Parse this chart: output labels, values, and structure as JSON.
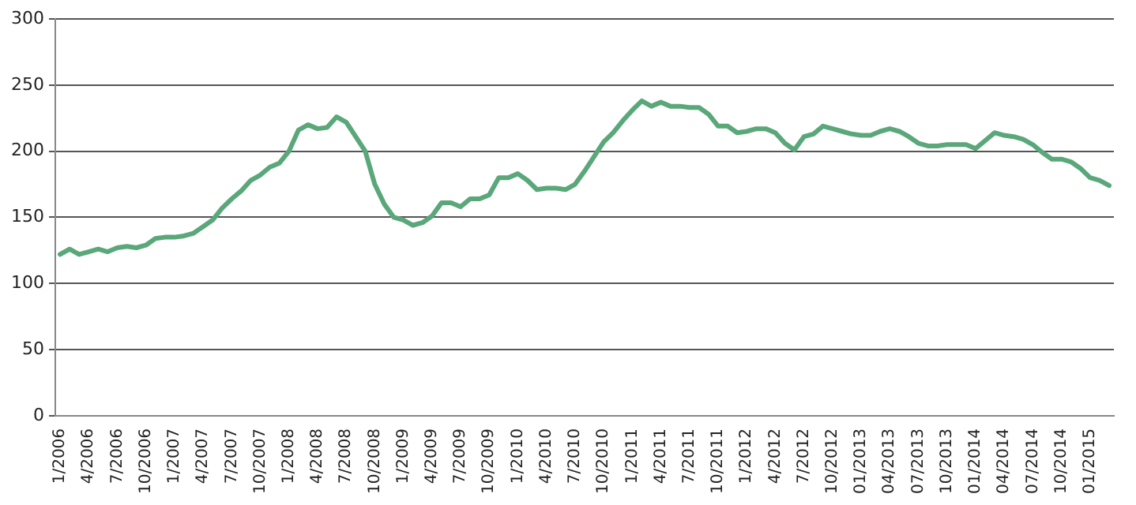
{
  "chart_data": {
    "type": "line",
    "categories": [
      "1/2006",
      null,
      null,
      "4/2006",
      null,
      null,
      "7/2006",
      null,
      null,
      "10/2006",
      null,
      null,
      "1/2007",
      null,
      null,
      "4/2007",
      null,
      null,
      "7/2007",
      null,
      null,
      "10/2007",
      null,
      null,
      "1/2008",
      null,
      null,
      "4/2008",
      null,
      null,
      "7/2008",
      null,
      null,
      "10/2008",
      null,
      null,
      "1/2009",
      null,
      null,
      "4/2009",
      null,
      null,
      "7/2009",
      null,
      null,
      "10/2009",
      null,
      null,
      "1/2010",
      null,
      null,
      "4/2010",
      null,
      null,
      "7/2010",
      null,
      null,
      "10/2010",
      null,
      null,
      "1/2011",
      null,
      null,
      "4/2011",
      null,
      null,
      "7/2011",
      null,
      null,
      "10/2011",
      null,
      null,
      "1/2012",
      null,
      null,
      "4/2012",
      null,
      null,
      "7/2012",
      null,
      null,
      "10/2012",
      null,
      null,
      "01/2013",
      null,
      null,
      "04/2013",
      null,
      null,
      "07/2013",
      null,
      null,
      "10/2013",
      null,
      null,
      "01/2014",
      null,
      null,
      "04/2014",
      null,
      null,
      "07/2014",
      null,
      null,
      "10/2014",
      null,
      null,
      "01/2015",
      null,
      null
    ],
    "series": [
      {
        "color": "#5aa77a",
        "values": [
          122,
          126,
          122,
          124,
          126,
          124,
          127,
          128,
          127,
          129,
          134,
          135,
          135,
          136,
          138,
          143,
          148,
          157,
          164,
          170,
          178,
          182,
          188,
          191,
          200,
          216,
          220,
          217,
          218,
          226,
          222,
          211,
          200,
          175,
          160,
          150,
          148,
          144,
          146,
          151,
          161,
          161,
          158,
          164,
          164,
          167,
          180,
          180,
          183,
          178,
          171,
          172,
          172,
          171,
          175,
          185,
          196,
          207,
          214,
          223,
          231,
          238,
          234,
          237,
          234,
          234,
          233,
          233,
          228,
          219,
          219,
          214,
          215,
          217,
          217,
          214,
          206,
          201,
          211,
          213,
          219,
          217,
          215,
          213,
          212,
          212,
          215,
          217,
          215,
          211,
          206,
          204,
          204,
          205,
          205,
          205,
          202,
          208,
          214,
          212,
          211,
          209,
          205,
          199,
          194,
          194,
          192,
          187,
          180,
          178,
          174
        ]
      }
    ],
    "ylim": [
      0,
      300
    ],
    "yticks": [
      0,
      50,
      100,
      150,
      200,
      250,
      300
    ],
    "grid": "y",
    "legend": false,
    "marker": "none",
    "line_style": "solid"
  }
}
